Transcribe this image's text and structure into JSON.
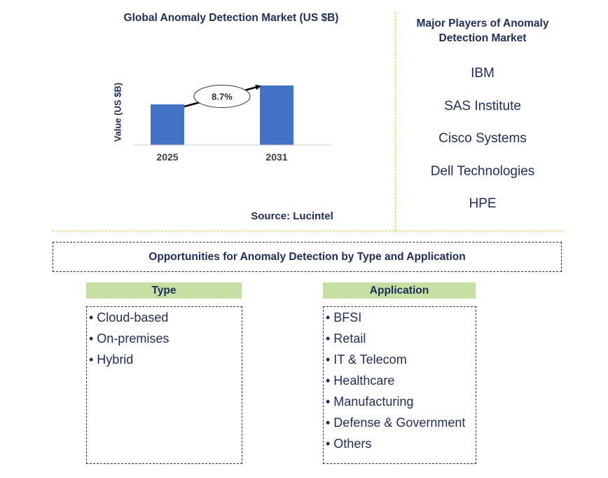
{
  "chart_data": {
    "type": "bar",
    "title": "Global Anomaly Detection Market (US $B)",
    "ylabel": "Value (US $B)",
    "categories": [
      "2025",
      "2031"
    ],
    "values": [
      58,
      85
    ],
    "ylim": [
      0,
      100
    ],
    "annotation": "8.7%",
    "bar_color": "#4472c4",
    "grid": false
  },
  "source": "Source: Lucintel",
  "players": {
    "title": "Major Players of Anomaly Detection Market",
    "items": [
      "IBM",
      "SAS Institute",
      "Cisco Systems",
      "Dell Technologies",
      "HPE"
    ]
  },
  "opportunities": {
    "title": "Opportunities for Anomaly Detection by Type and Application",
    "type_header": "Type",
    "types": [
      "• Cloud-based",
      "• On-premises",
      "• Hybrid"
    ],
    "application_header": "Application",
    "applications": [
      "• BFSI",
      "• Retail",
      "• IT & Telecom",
      "• Healthcare",
      "• Manufacturing",
      "• Defense & Government",
      "• Others"
    ]
  },
  "colors": {
    "text": "#1f2d5a",
    "header_bg": "#c6e0a4",
    "divider": "#f2c14e"
  }
}
